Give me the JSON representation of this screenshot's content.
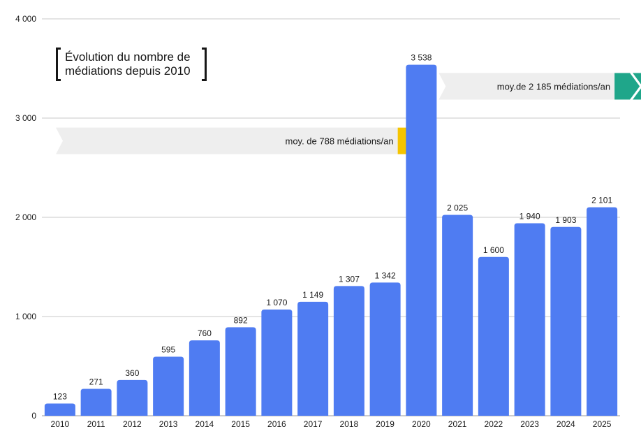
{
  "chart_data": {
    "type": "bar",
    "title_lines": [
      "Évolution du nombre de",
      "médiations depuis 2010"
    ],
    "categories": [
      "2010",
      "2011",
      "2012",
      "2013",
      "2014",
      "2015",
      "2016",
      "2017",
      "2018",
      "2019",
      "2020",
      "2021",
      "2022",
      "2023",
      "2024",
      "2025"
    ],
    "values": [
      123,
      271,
      360,
      595,
      760,
      892,
      1070,
      1149,
      1307,
      1342,
      3538,
      2025,
      1600,
      1940,
      1903,
      2101
    ],
    "value_labels": [
      "123",
      "271",
      "360",
      "595",
      "760",
      "892",
      "1 070",
      "1 149",
      "1 307",
      "1 342",
      "3 538",
      "2 025",
      "1 600",
      "1 940",
      "1 903",
      "2 101"
    ],
    "ylim": [
      0,
      4000
    ],
    "yticks": [
      0,
      1000,
      2000,
      3000,
      4000
    ],
    "ytick_labels": [
      "0",
      "1 000",
      "2 000",
      "3 000",
      "4 000"
    ],
    "grid": true,
    "bar_color": "#4f7cf2",
    "annotations": [
      {
        "text": "moy. de 788 médiations/an",
        "value": 788,
        "from": "2010",
        "to": "2019",
        "color": "#f5c400",
        "band_y": 2770
      },
      {
        "text": "moy.de 2 185 médiations/an",
        "value": 2185,
        "from": "2020",
        "to": "2025",
        "color": "#1fa68a",
        "band_y": 3320
      }
    ]
  }
}
